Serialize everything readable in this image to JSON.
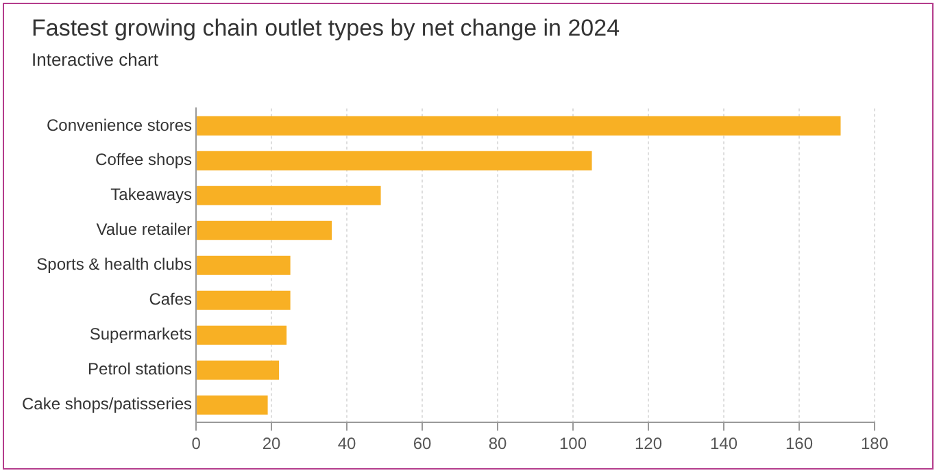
{
  "chart_data": {
    "type": "bar",
    "orientation": "horizontal",
    "title": "Fastest growing chain outlet types by net change in 2024",
    "subtitle": "Interactive chart",
    "categories": [
      "Convenience stores",
      "Coffee shops",
      "Takeaways",
      "Value retailer",
      "Sports & health clubs",
      "Cafes",
      "Supermarkets",
      "Petrol stations",
      "Cake shops/patisseries"
    ],
    "values": [
      171,
      105,
      49,
      36,
      25,
      25,
      24,
      22,
      19
    ],
    "color": "#f8b024",
    "xlim": [
      0,
      180
    ],
    "xticks": [
      0,
      20,
      40,
      60,
      80,
      100,
      120,
      140,
      160,
      180
    ],
    "grid": "x"
  }
}
